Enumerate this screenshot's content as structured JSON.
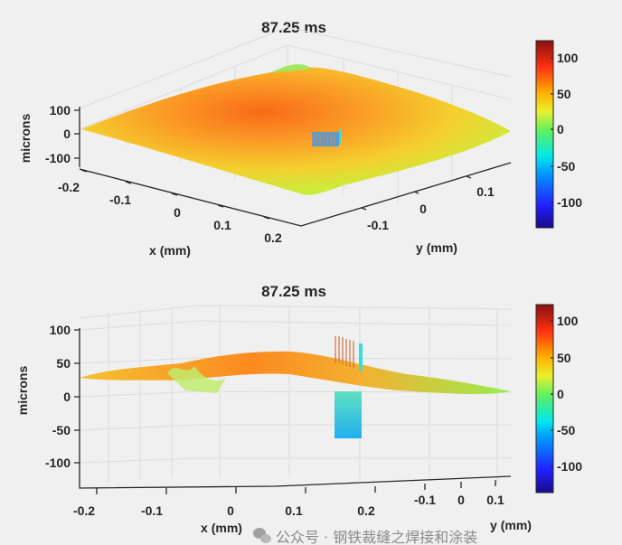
{
  "chart_data": [
    {
      "type": "surface",
      "title": "87.25 ms",
      "view": "oblique",
      "xlabel": "x (mm)",
      "ylabel": "y (mm)",
      "zlabel": "microns",
      "xticks": [
        "-0.2",
        "-0.1",
        "0",
        "0.1",
        "0.2"
      ],
      "yticks": [
        "-0.1",
        "0",
        "0.1"
      ],
      "zticks": [
        "100",
        "0",
        "-100"
      ],
      "xlim": [
        -0.22,
        0.22
      ],
      "ylim": [
        -0.15,
        0.15
      ],
      "zlim": [
        -130,
        125
      ],
      "grid": true,
      "colormap": "jet",
      "colorbar": {
        "ticks": [
          "100",
          "50",
          "0",
          "-50",
          "-100"
        ],
        "range": [
          -130,
          125
        ],
        "placement": "right"
      },
      "surface_summary": {
        "peak_height": 55,
        "edge_height": 20,
        "hole_center": [
          0.05,
          0.0
        ],
        "hole_depth": -70
      }
    },
    {
      "type": "surface",
      "title": "87.25 ms",
      "view": "side",
      "xlabel": "x (mm)",
      "ylabel": "y (mm)",
      "zlabel": "microns",
      "xticks": [
        "-0.2",
        "-0.1",
        "0",
        "0.1",
        "0.2"
      ],
      "yticks": [
        "-0.1",
        "0",
        "0.1"
      ],
      "zticks": [
        "100",
        "50",
        "0",
        "-50",
        "-100"
      ],
      "xlim": [
        -0.22,
        0.22
      ],
      "ylim": [
        -0.15,
        0.15
      ],
      "zlim": [
        -130,
        125
      ],
      "grid": true,
      "colormap": "jet",
      "colorbar": {
        "ticks": [
          "100",
          "50",
          "0",
          "-50",
          "-100"
        ],
        "range": [
          -130,
          125
        ],
        "placement": "right"
      },
      "surface_summary": {
        "peak_height": 55,
        "edge_height": 20,
        "hole_center": [
          0.15,
          0.0
        ],
        "hole_depth": -65,
        "rim_height": 75
      }
    }
  ],
  "watermark": "公众号 · 钢铁裁缝之焊接和涂装",
  "colors": {
    "background": "#f0f0f0",
    "text": "#262626",
    "grid": "#dcdcdc"
  }
}
